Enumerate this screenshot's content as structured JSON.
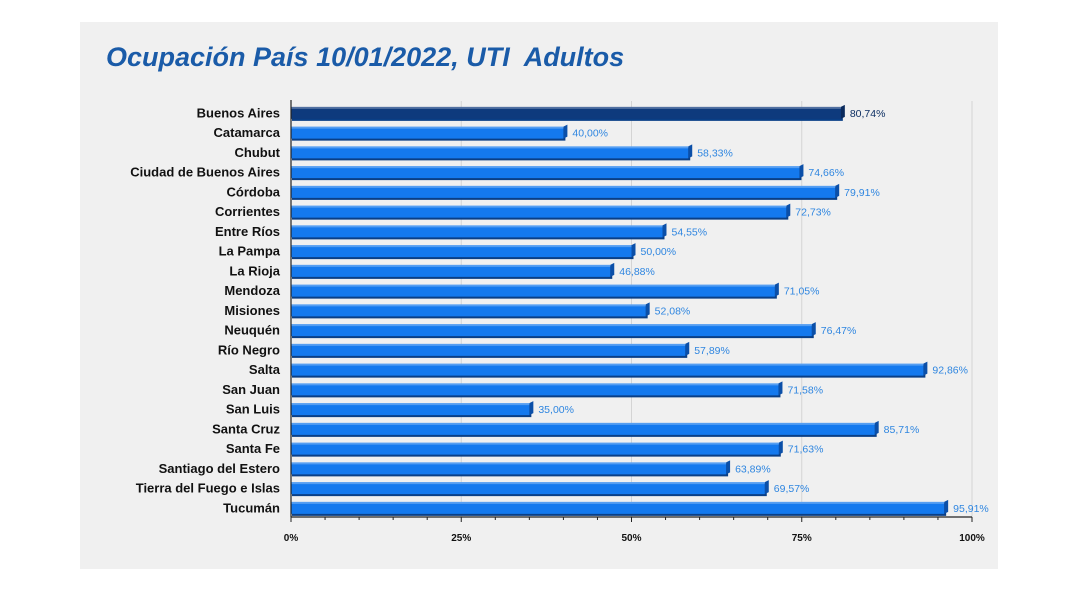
{
  "chart_data": {
    "type": "bar",
    "orientation": "horizontal",
    "title": "Ocupación País 10/01/2022, UTI  Adultos",
    "categories": [
      "Buenos Aires",
      "Catamarca",
      "Chubut",
      "Ciudad de Buenos Aires",
      "Córdoba",
      "Corrientes",
      "Entre Ríos",
      "La Pampa",
      "La Rioja",
      "Mendoza",
      "Misiones",
      "Neuquén",
      "Río Negro",
      "Salta",
      "San Juan",
      "San Luis",
      "Santa Cruz",
      "Santa Fe",
      "Santiago del Estero",
      "Tierra del Fuego e Islas",
      "Tucumán"
    ],
    "values": [
      80.74,
      40.0,
      58.33,
      74.66,
      79.91,
      72.73,
      54.55,
      50.0,
      46.88,
      71.05,
      52.08,
      76.47,
      57.89,
      92.86,
      71.58,
      35.0,
      85.71,
      71.63,
      63.89,
      69.57,
      95.91
    ],
    "value_labels": [
      "80,74%",
      "40,00%",
      "58,33%",
      "74,66%",
      "79,91%",
      "72,73%",
      "54,55%",
      "50,00%",
      "46,88%",
      "71,05%",
      "52,08%",
      "76,47%",
      "57,89%",
      "92,86%",
      "71,58%",
      "35,00%",
      "85,71%",
      "71,63%",
      "63,89%",
      "69,57%",
      "95,91%"
    ],
    "highlight": "Buenos Aires",
    "xlim": [
      0,
      100
    ],
    "x_ticks": [
      0,
      25,
      50,
      75,
      100
    ],
    "x_tick_labels": [
      "0%",
      "25%",
      "50%",
      "75%",
      "100%"
    ],
    "xlabel": "",
    "ylabel": "",
    "grid": true,
    "legend": "none",
    "colors": {
      "bar": "#1479ee",
      "bar_edge": "#0a3f86",
      "highlight_bar": "#0e3a7d",
      "label": "#2f86e0",
      "highlight_label": "#0d2f63",
      "title": "#1a5ba8",
      "panel": "#f0f0f0",
      "grid": "#d4d4d4"
    }
  }
}
